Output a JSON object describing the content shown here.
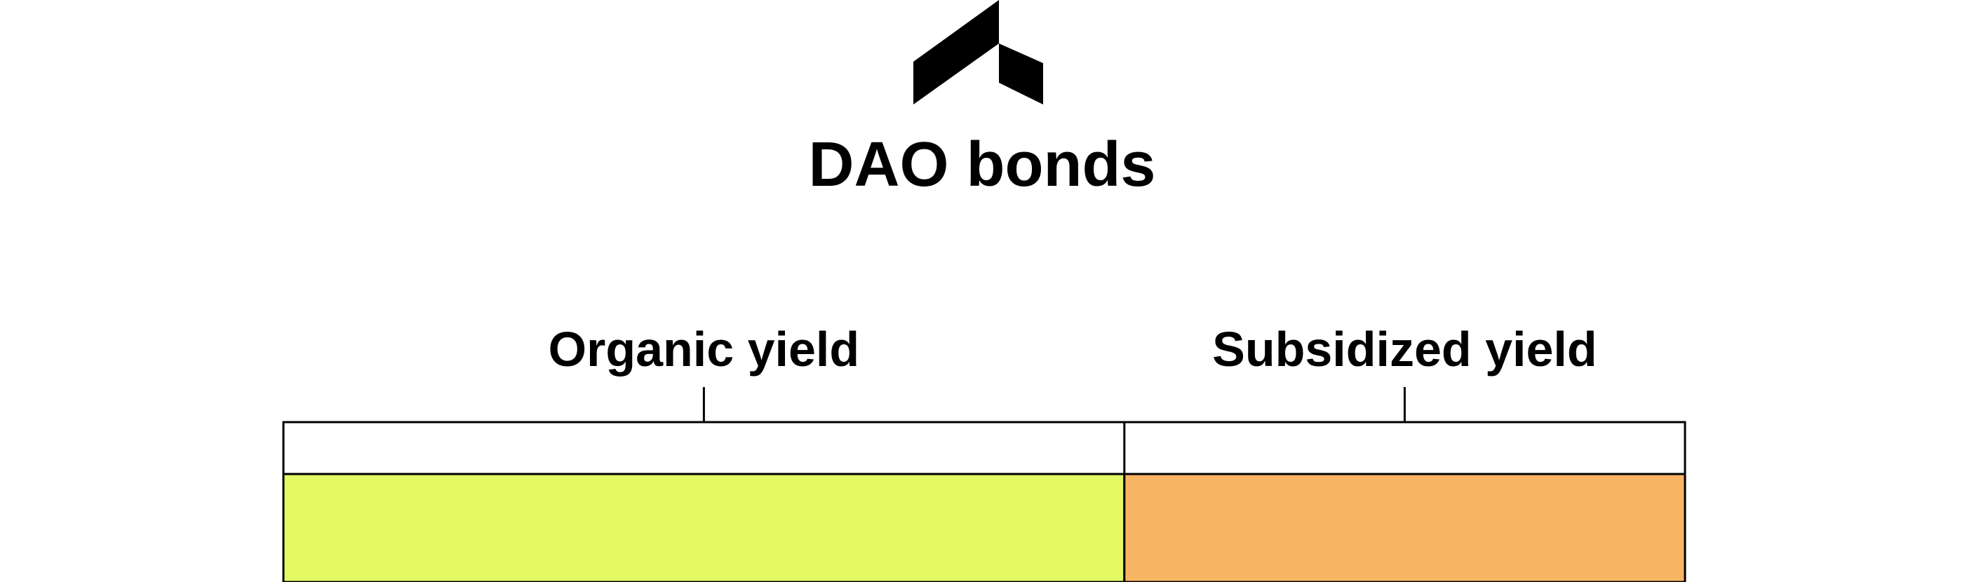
{
  "title": "DAO bonds",
  "logo": {
    "icon": "shard-logo-icon",
    "color": "#000000"
  },
  "sections": [
    {
      "label": "Organic yield",
      "share": 0.6,
      "color": "#e4fa64"
    },
    {
      "label": "Subsidized yield",
      "share": 0.4,
      "color": "#f8b563"
    }
  ],
  "colors": {
    "background": "#ffffff",
    "outline": "#000000"
  }
}
